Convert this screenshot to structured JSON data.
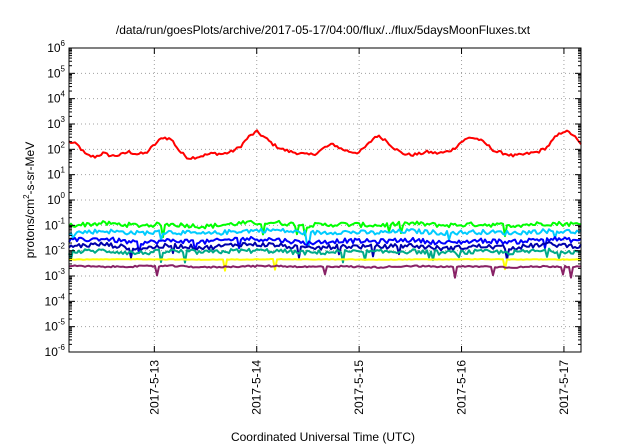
{
  "chart_data": {
    "type": "line",
    "title": "/data/run/goesPlots/archive/2017-05-17/04:00/flux/../flux/5daysMoonFluxes.txt",
    "xlabel": "Coordinated Universal Time (UTC)",
    "ylabel": {
      "base": "protons/cm",
      "sup": "2",
      "rest": "-s-sr-MeV"
    },
    "y_scale": "log",
    "ylim": [
      1e-06,
      1000000.0
    ],
    "y_ticks": [
      {
        "value": 1e-06,
        "base": "10",
        "exp": "-6"
      },
      {
        "value": 1e-05,
        "base": "10",
        "exp": "-5"
      },
      {
        "value": 0.0001,
        "base": "10",
        "exp": "-4"
      },
      {
        "value": 0.001,
        "base": "10",
        "exp": "-3"
      },
      {
        "value": 0.01,
        "base": "10",
        "exp": "-2"
      },
      {
        "value": 0.1,
        "base": "10",
        "exp": "-1"
      },
      {
        "value": 1,
        "base": "10",
        "exp": "0"
      },
      {
        "value": 10,
        "base": "10",
        "exp": "1"
      },
      {
        "value": 100,
        "base": "10",
        "exp": "2"
      },
      {
        "value": 1000,
        "base": "10",
        "exp": "3"
      },
      {
        "value": 10000,
        "base": "10",
        "exp": "4"
      },
      {
        "value": 100000,
        "base": "10",
        "exp": "5"
      },
      {
        "value": 1000000,
        "base": "10",
        "exp": "6"
      }
    ],
    "xlim": [
      "2017-05-12T04:00",
      "2017-05-17T04:00"
    ],
    "x_ticks": [
      {
        "value": "2017-05-13T00:00",
        "label": "2017-5-13"
      },
      {
        "value": "2017-05-14T00:00",
        "label": "2017-5-14"
      },
      {
        "value": "2017-05-15T00:00",
        "label": "2017-5-15"
      },
      {
        "value": "2017-05-16T00:00",
        "label": "2017-5-16"
      },
      {
        "value": "2017-05-17T00:00",
        "label": "2017-5-17"
      }
    ],
    "grid": true,
    "series": [
      {
        "color": "#ff0000",
        "x": [
          "2017-05-12T04:00",
          "2017-05-12T06:00",
          "2017-05-12T08:00",
          "2017-05-12T10:00",
          "2017-05-12T12:00",
          "2017-05-12T14:00",
          "2017-05-12T16:00",
          "2017-05-12T18:00",
          "2017-05-12T20:00",
          "2017-05-12T22:00",
          "2017-05-13T00:00",
          "2017-05-13T02:00",
          "2017-05-13T04:00",
          "2017-05-13T06:00",
          "2017-05-13T08:00",
          "2017-05-13T10:00",
          "2017-05-13T12:00",
          "2017-05-13T14:00",
          "2017-05-13T16:00",
          "2017-05-13T18:00",
          "2017-05-13T20:00",
          "2017-05-13T22:00",
          "2017-05-14T00:00",
          "2017-05-14T02:00",
          "2017-05-14T04:00",
          "2017-05-14T06:00",
          "2017-05-14T08:00",
          "2017-05-14T10:00",
          "2017-05-14T12:00",
          "2017-05-14T14:00",
          "2017-05-14T16:00",
          "2017-05-14T18:00",
          "2017-05-14T20:00",
          "2017-05-14T22:00",
          "2017-05-15T00:00",
          "2017-05-15T02:00",
          "2017-05-15T04:00",
          "2017-05-15T06:00",
          "2017-05-15T08:00",
          "2017-05-15T10:00",
          "2017-05-15T12:00",
          "2017-05-15T14:00",
          "2017-05-15T16:00",
          "2017-05-15T18:00",
          "2017-05-15T20:00",
          "2017-05-15T22:00",
          "2017-05-16T00:00",
          "2017-05-16T02:00",
          "2017-05-16T04:00",
          "2017-05-16T06:00",
          "2017-05-16T08:00",
          "2017-05-16T10:00",
          "2017-05-16T12:00",
          "2017-05-16T14:00",
          "2017-05-16T16:00",
          "2017-05-16T18:00",
          "2017-05-16T20:00",
          "2017-05-16T22:00",
          "2017-05-17T00:00",
          "2017-05-17T02:00",
          "2017-05-17T04:00"
        ],
        "y": [
          200,
          150,
          60,
          50,
          70,
          55,
          60,
          80,
          65,
          70,
          150,
          300,
          250,
          80,
          45,
          50,
          60,
          70,
          65,
          80,
          120,
          300,
          500,
          280,
          150,
          100,
          80,
          70,
          60,
          70,
          120,
          160,
          100,
          80,
          75,
          150,
          350,
          250,
          120,
          70,
          60,
          65,
          80,
          70,
          75,
          100,
          200,
          300,
          250,
          150,
          80,
          70,
          55,
          60,
          70,
          80,
          120,
          300,
          550,
          400,
          150
        ]
      },
      {
        "color": "#00ff00",
        "x": [
          "2017-05-12T04:00",
          "2017-05-12T12:00",
          "2017-05-12T20:00",
          "2017-05-13T04:00",
          "2017-05-13T12:00",
          "2017-05-13T20:00",
          "2017-05-14T04:00",
          "2017-05-14T12:00",
          "2017-05-14T20:00",
          "2017-05-15T04:00",
          "2017-05-15T12:00",
          "2017-05-15T20:00",
          "2017-05-16T04:00",
          "2017-05-16T12:00",
          "2017-05-16T20:00",
          "2017-05-17T04:00"
        ],
        "y": [
          0.1,
          0.12,
          0.1,
          0.11,
          0.09,
          0.12,
          0.13,
          0.1,
          0.11,
          0.1,
          0.12,
          0.1,
          0.11,
          0.1,
          0.12,
          0.11
        ]
      },
      {
        "color": "#00ccff",
        "x": [
          "2017-05-12T04:00",
          "2017-05-12T12:00",
          "2017-05-12T20:00",
          "2017-05-13T04:00",
          "2017-05-13T12:00",
          "2017-05-13T20:00",
          "2017-05-14T04:00",
          "2017-05-14T12:00",
          "2017-05-14T20:00",
          "2017-05-15T04:00",
          "2017-05-15T12:00",
          "2017-05-15T20:00",
          "2017-05-16T04:00",
          "2017-05-16T12:00",
          "2017-05-16T20:00",
          "2017-05-17T04:00"
        ],
        "y": [
          0.05,
          0.06,
          0.05,
          0.055,
          0.045,
          0.06,
          0.065,
          0.05,
          0.055,
          0.05,
          0.06,
          0.05,
          0.055,
          0.05,
          0.06,
          0.055
        ]
      },
      {
        "color": "#0000ff",
        "x": [
          "2017-05-12T04:00",
          "2017-05-12T12:00",
          "2017-05-12T20:00",
          "2017-05-13T04:00",
          "2017-05-13T12:00",
          "2017-05-13T20:00",
          "2017-05-14T04:00",
          "2017-05-14T12:00",
          "2017-05-14T20:00",
          "2017-05-15T04:00",
          "2017-05-15T12:00",
          "2017-05-15T20:00",
          "2017-05-16T04:00",
          "2017-05-16T12:00",
          "2017-05-16T20:00",
          "2017-05-17T04:00"
        ],
        "y": [
          0.025,
          0.03,
          0.02,
          0.025,
          0.022,
          0.03,
          0.028,
          0.02,
          0.025,
          0.023,
          0.027,
          0.02,
          0.025,
          0.022,
          0.03,
          0.025
        ]
      },
      {
        "color": "#0000aa",
        "x": [
          "2017-05-12T04:00",
          "2017-05-12T12:00",
          "2017-05-12T20:00",
          "2017-05-13T04:00",
          "2017-05-13T12:00",
          "2017-05-13T20:00",
          "2017-05-14T04:00",
          "2017-05-14T12:00",
          "2017-05-14T20:00",
          "2017-05-15T04:00",
          "2017-05-15T12:00",
          "2017-05-15T20:00",
          "2017-05-16T04:00",
          "2017-05-16T12:00",
          "2017-05-16T20:00",
          "2017-05-17T04:00"
        ],
        "y": [
          0.015,
          0.018,
          0.012,
          0.016,
          0.013,
          0.018,
          0.017,
          0.012,
          0.015,
          0.014,
          0.016,
          0.012,
          0.015,
          0.013,
          0.018,
          0.015
        ]
      },
      {
        "color": "#00aa88",
        "x": [
          "2017-05-12T04:00",
          "2017-05-12T12:00",
          "2017-05-12T20:00",
          "2017-05-13T04:00",
          "2017-05-13T12:00",
          "2017-05-13T20:00",
          "2017-05-14T04:00",
          "2017-05-14T12:00",
          "2017-05-14T20:00",
          "2017-05-15T04:00",
          "2017-05-15T12:00",
          "2017-05-15T20:00",
          "2017-05-16T04:00",
          "2017-05-16T12:00",
          "2017-05-16T20:00",
          "2017-05-17T04:00"
        ],
        "y": [
          0.009,
          0.01,
          0.008,
          0.0095,
          0.0085,
          0.01,
          0.0098,
          0.0082,
          0.009,
          0.0088,
          0.0095,
          0.0082,
          0.009,
          0.0085,
          0.01,
          0.009
        ]
      },
      {
        "color": "#ffff00",
        "x": [
          "2017-05-12T04:00",
          "2017-05-12T12:00",
          "2017-05-12T20:00",
          "2017-05-13T04:00",
          "2017-05-13T12:00",
          "2017-05-13T20:00",
          "2017-05-14T04:00",
          "2017-05-14T12:00",
          "2017-05-14T20:00",
          "2017-05-15T04:00",
          "2017-05-15T12:00",
          "2017-05-15T20:00",
          "2017-05-16T04:00",
          "2017-05-16T12:00",
          "2017-05-16T20:00",
          "2017-05-17T04:00"
        ],
        "y": [
          0.0045,
          0.0045,
          0.0046,
          0.0045,
          0.0044,
          0.0045,
          0.0046,
          0.0045,
          0.0045,
          0.0044,
          0.0045,
          0.0045,
          0.0046,
          0.0045,
          0.0045,
          0.0045
        ]
      },
      {
        "color": "#882266",
        "x": [
          "2017-05-12T04:00",
          "2017-05-12T12:00",
          "2017-05-12T20:00",
          "2017-05-13T04:00",
          "2017-05-13T12:00",
          "2017-05-13T20:00",
          "2017-05-14T04:00",
          "2017-05-14T12:00",
          "2017-05-14T20:00",
          "2017-05-15T04:00",
          "2017-05-15T12:00",
          "2017-05-15T20:00",
          "2017-05-16T04:00",
          "2017-05-16T12:00",
          "2017-05-16T20:00",
          "2017-05-17T04:00"
        ],
        "y": [
          0.0025,
          0.0023,
          0.0024,
          0.0025,
          0.0022,
          0.0024,
          0.0025,
          0.0023,
          0.0024,
          0.0022,
          0.0025,
          0.0023,
          0.0024,
          0.0022,
          0.0024,
          0.0023
        ]
      }
    ]
  }
}
